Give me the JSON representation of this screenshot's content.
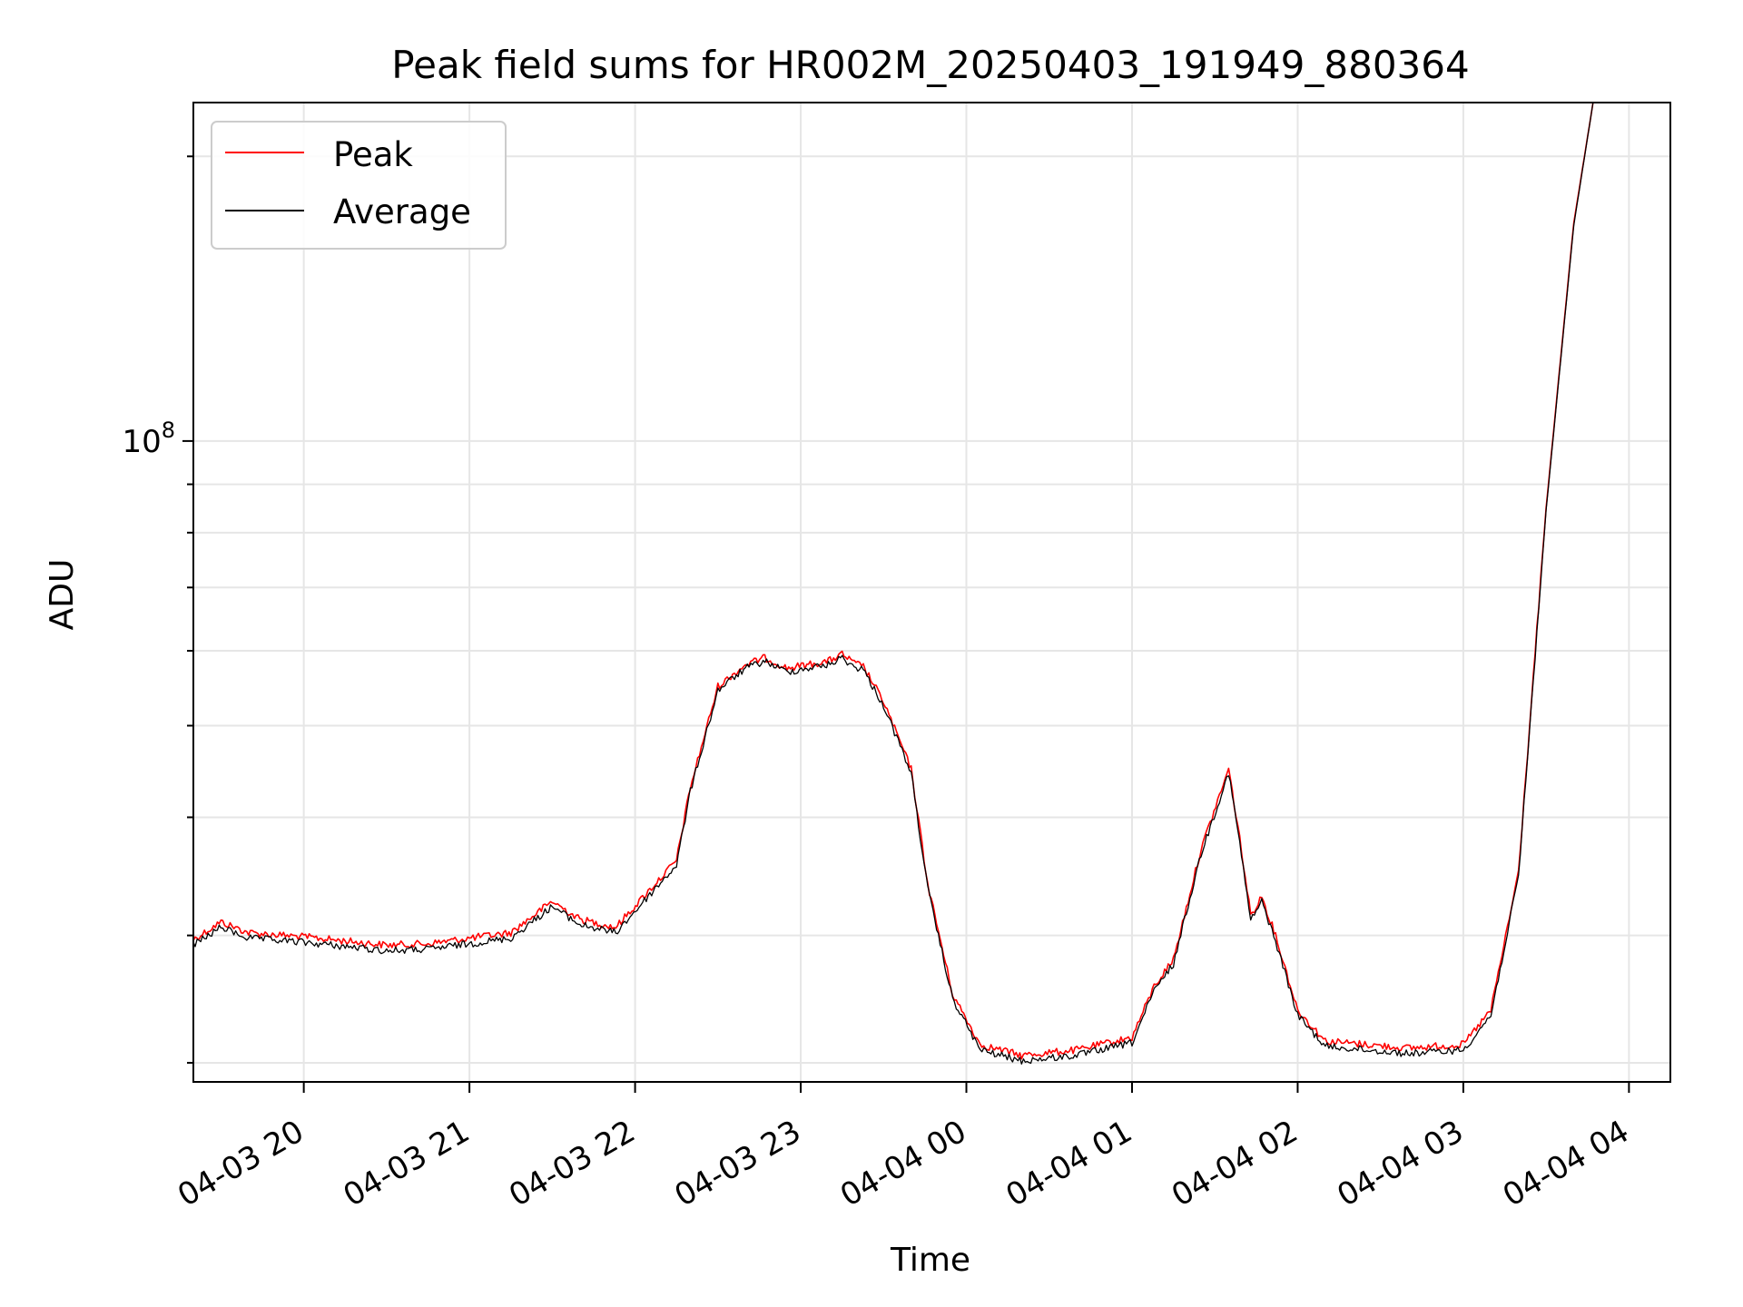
{
  "chart_data": {
    "type": "line",
    "title": "Peak field sums for HR002M_20250403_191949_880364",
    "xlabel": "Time",
    "ylabel": "ADU",
    "yscale": "log",
    "ylim": [
      21000000,
      228000000
    ],
    "y_major_ticks": [
      {
        "value": 100000000,
        "label": "10",
        "exponent": "8"
      }
    ],
    "y_minor_ticks": [
      22000000,
      30000000,
      40000000,
      50000000,
      60000000,
      70000000,
      80000000,
      90000000,
      200000000
    ],
    "xlim": [
      "2025-04-03 19:20",
      "2025-04-04 04:15"
    ],
    "x_ticks": [
      {
        "value": "2025-04-03 20:00",
        "label": "04-03 20"
      },
      {
        "value": "2025-04-03 21:00",
        "label": "04-03 21"
      },
      {
        "value": "2025-04-03 22:00",
        "label": "04-03 22"
      },
      {
        "value": "2025-04-03 23:00",
        "label": "04-03 23"
      },
      {
        "value": "2025-04-04 00:00",
        "label": "04-04 00"
      },
      {
        "value": "2025-04-04 01:00",
        "label": "04-04 01"
      },
      {
        "value": "2025-04-04 02:00",
        "label": "04-04 02"
      },
      {
        "value": "2025-04-04 03:00",
        "label": "04-04 03"
      },
      {
        "value": "2025-04-04 04:00",
        "label": "04-04 04"
      }
    ],
    "grid": true,
    "legend_position": "top-left",
    "series": [
      {
        "name": "Peak",
        "color": "#ff0000",
        "x": [
          "2025-04-03 19:20",
          "2025-04-03 19:30",
          "2025-04-03 19:40",
          "2025-04-03 20:00",
          "2025-04-03 20:30",
          "2025-04-03 20:45",
          "2025-04-03 21:00",
          "2025-04-03 21:15",
          "2025-04-03 21:30",
          "2025-04-03 21:40",
          "2025-04-03 21:53",
          "2025-04-03 22:06",
          "2025-04-03 22:15",
          "2025-04-03 22:20",
          "2025-04-03 22:30",
          "2025-04-03 22:40",
          "2025-04-03 22:47",
          "2025-04-03 22:55",
          "2025-04-03 23:10",
          "2025-04-03 23:15",
          "2025-04-03 23:20",
          "2025-04-03 23:22",
          "2025-04-03 23:30",
          "2025-04-03 23:40",
          "2025-04-03 23:46",
          "2025-04-03 23:55",
          "2025-04-04 00:05",
          "2025-04-04 00:20",
          "2025-04-04 00:40",
          "2025-04-04 01:00",
          "2025-04-04 01:08",
          "2025-04-04 01:15",
          "2025-04-04 01:25",
          "2025-04-04 01:35",
          "2025-04-04 01:39",
          "2025-04-04 01:43",
          "2025-04-04 01:47",
          "2025-04-04 01:52",
          "2025-04-04 02:00",
          "2025-04-04 02:10",
          "2025-04-04 02:40",
          "2025-04-04 03:00",
          "2025-04-04 03:10",
          "2025-04-04 03:20",
          "2025-04-04 03:30",
          "2025-04-04 03:40",
          "2025-04-04 03:47"
        ],
        "values": [
          29700000,
          31000000,
          30200000,
          29900000,
          29300000,
          29400000,
          29800000,
          30200000,
          32600000,
          31200000,
          30600000,
          33700000,
          36000000,
          43000000,
          55000000,
          58000000,
          59000000,
          57500000,
          58500000,
          59500000,
          58000000,
          58200000,
          53000000,
          45000000,
          34000000,
          26000000,
          23000000,
          22400000,
          22700000,
          23400000,
          26500000,
          28300000,
          37000000,
          45000000,
          38000000,
          31500000,
          33000000,
          30000000,
          25000000,
          23200000,
          22800000,
          23000000,
          25000000,
          35000000,
          85000000,
          170000000,
          228000000
        ]
      },
      {
        "name": "Average",
        "color": "#000000",
        "x": [
          "2025-04-03 19:20",
          "2025-04-03 19:30",
          "2025-04-03 19:40",
          "2025-04-03 20:00",
          "2025-04-03 20:30",
          "2025-04-03 20:45",
          "2025-04-03 21:00",
          "2025-04-03 21:15",
          "2025-04-03 21:30",
          "2025-04-03 21:40",
          "2025-04-03 21:53",
          "2025-04-03 22:06",
          "2025-04-03 22:15",
          "2025-04-03 22:20",
          "2025-04-03 22:30",
          "2025-04-03 22:40",
          "2025-04-03 22:47",
          "2025-04-03 22:55",
          "2025-04-03 23:10",
          "2025-04-03 23:15",
          "2025-04-03 23:20",
          "2025-04-03 23:22",
          "2025-04-03 23:30",
          "2025-04-03 23:40",
          "2025-04-03 23:46",
          "2025-04-03 23:55",
          "2025-04-04 00:05",
          "2025-04-04 00:20",
          "2025-04-04 00:40",
          "2025-04-04 01:00",
          "2025-04-04 01:08",
          "2025-04-04 01:15",
          "2025-04-04 01:25",
          "2025-04-04 01:35",
          "2025-04-04 01:39",
          "2025-04-04 01:43",
          "2025-04-04 01:47",
          "2025-04-04 01:52",
          "2025-04-04 02:00",
          "2025-04-04 02:10",
          "2025-04-04 02:40",
          "2025-04-04 03:00",
          "2025-04-04 03:10",
          "2025-04-04 03:20",
          "2025-04-04 03:30",
          "2025-04-04 03:40",
          "2025-04-04 03:47"
        ],
        "values": [
          29300000,
          30600000,
          29800000,
          29500000,
          28900000,
          29000000,
          29400000,
          29800000,
          32200000,
          30800000,
          30200000,
          33300000,
          35600000,
          42600000,
          54500000,
          57500000,
          58500000,
          57000000,
          58000000,
          59000000,
          57500000,
          57700000,
          52500000,
          44600000,
          33600000,
          25700000,
          22700000,
          22100000,
          22400000,
          23100000,
          26200000,
          28000000,
          36600000,
          44600000,
          37600000,
          31100000,
          32600000,
          29600000,
          24700000,
          22900000,
          22500000,
          22700000,
          24700000,
          34600000,
          84500000,
          169000000,
          228000000
        ]
      }
    ]
  }
}
